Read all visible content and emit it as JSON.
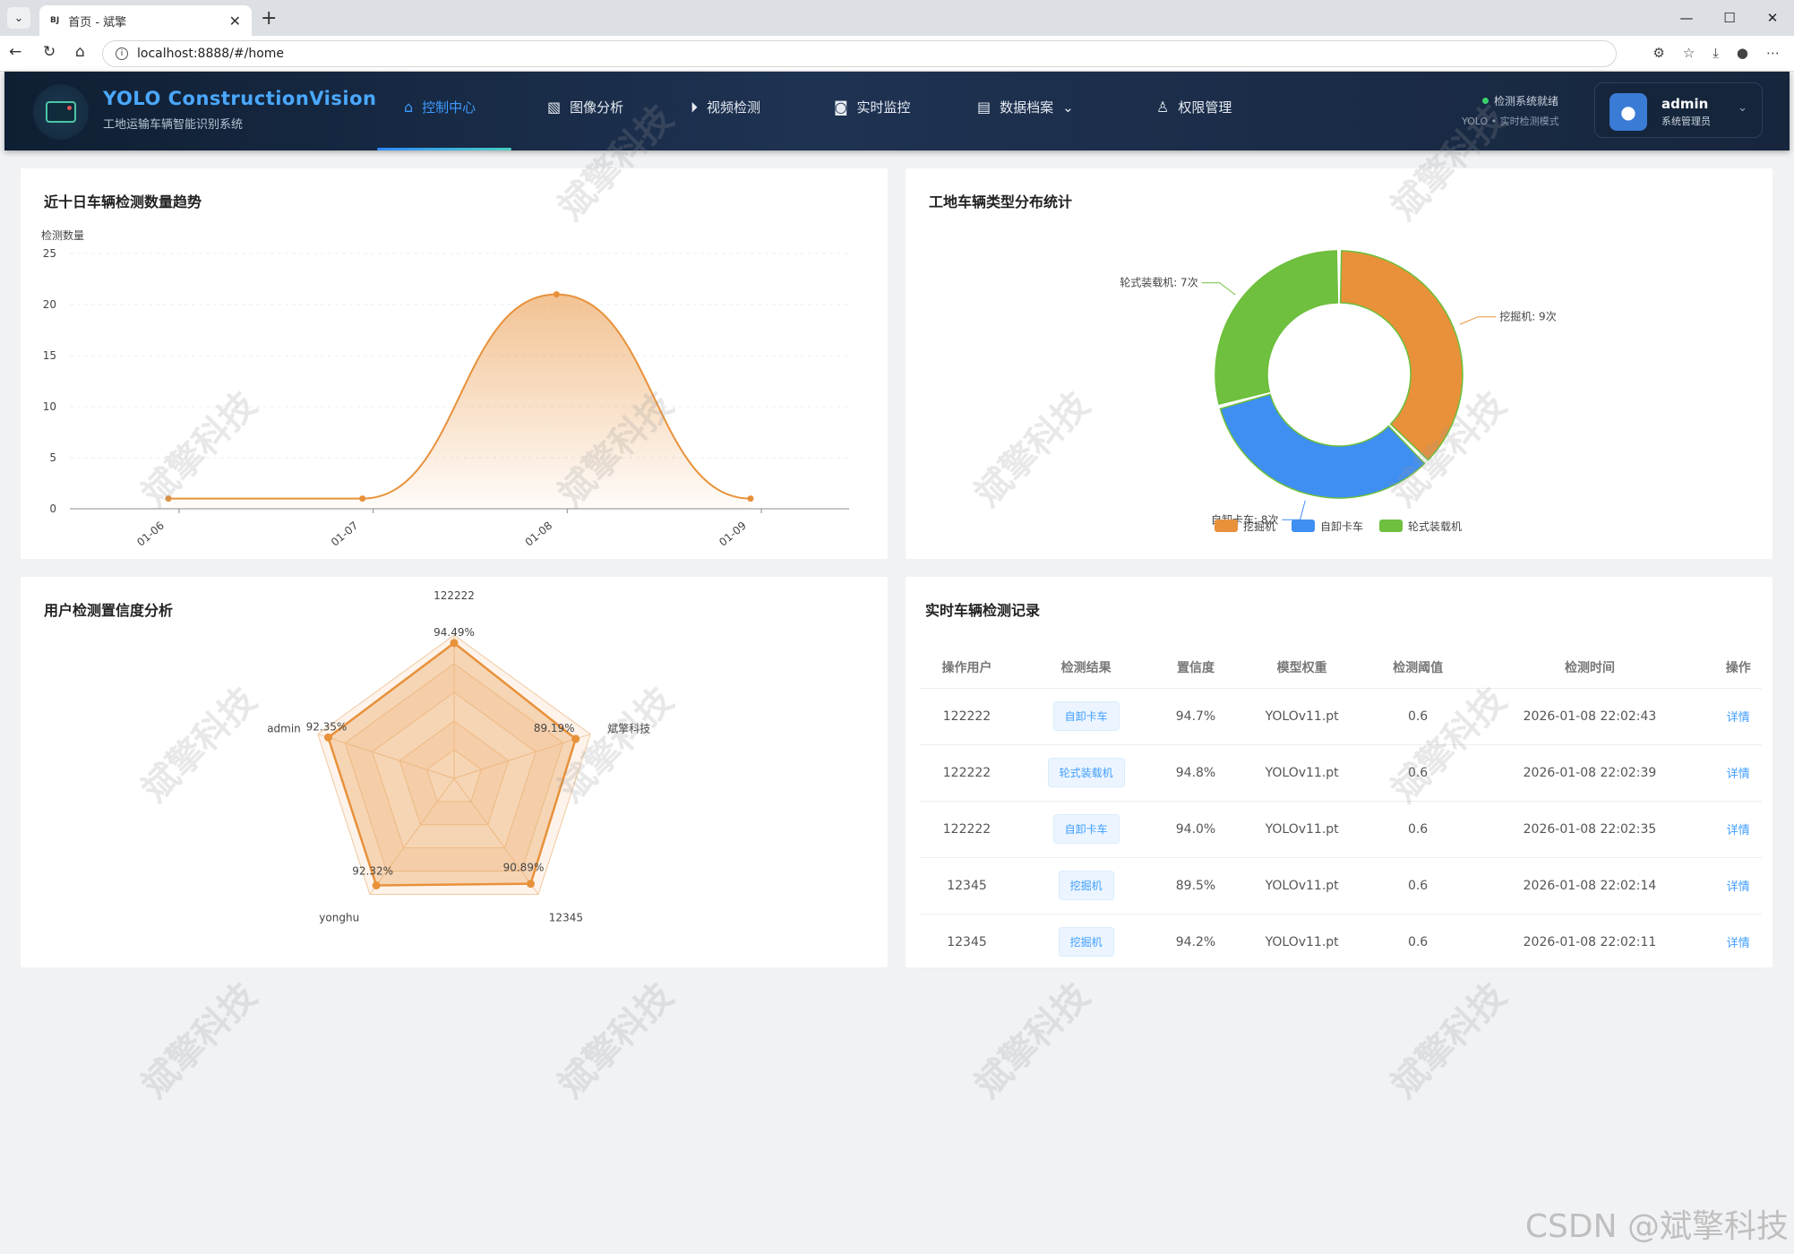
{
  "browser": {
    "tab_title": "首页 - 斌擎",
    "favicon_text": "BJ",
    "url": "localhost:8888/#/home"
  },
  "header": {
    "brand_title": "YOLO ConstructionVision",
    "brand_subtitle": "工地运输车辆智能识别系统",
    "nav": [
      {
        "label": "控制中心",
        "icon": "home-icon",
        "active": true
      },
      {
        "label": "图像分析",
        "icon": "image-icon",
        "active": false
      },
      {
        "label": "视频检测",
        "icon": "play-circle-icon",
        "active": false
      },
      {
        "label": "实时监控",
        "icon": "camera-icon",
        "active": false
      },
      {
        "label": "数据档案",
        "icon": "document-icon",
        "active": false
      },
      {
        "label": "权限管理",
        "icon": "user-icon",
        "active": false
      }
    ],
    "status": "检测系统就绪",
    "status_sub": "YOLO • 实时检测模式",
    "user_name": "admin",
    "user_role": "系统管理员"
  },
  "trend_card": {
    "title": "近十日车辆检测数量趋势"
  },
  "type_card": {
    "title": "工地车辆类型分布统计"
  },
  "radar_card": {
    "title": "用户检测置信度分析"
  },
  "records_card": {
    "title": "实时车辆检测记录",
    "columns": [
      "操作用户",
      "检测结果",
      "置信度",
      "模型权重",
      "检测阈值",
      "检测时间",
      "操作"
    ],
    "rows": [
      {
        "user": "122222",
        "result": "自卸卡车",
        "confidence": "94.7%",
        "model": "YOLOv11.pt",
        "threshold": "0.6",
        "time": "2026-01-08 22:02:43",
        "action": "详情"
      },
      {
        "user": "122222",
        "result": "轮式装载机",
        "confidence": "94.8%",
        "model": "YOLOv11.pt",
        "threshold": "0.6",
        "time": "2026-01-08 22:02:39",
        "action": "详情"
      },
      {
        "user": "122222",
        "result": "自卸卡车",
        "confidence": "94.0%",
        "model": "YOLOv11.pt",
        "threshold": "0.6",
        "time": "2026-01-08 22:02:35",
        "action": "详情"
      },
      {
        "user": "12345",
        "result": "挖掘机",
        "confidence": "89.5%",
        "model": "YOLOv11.pt",
        "threshold": "0.6",
        "time": "2026-01-08 22:02:14",
        "action": "详情"
      },
      {
        "user": "12345",
        "result": "挖掘机",
        "confidence": "94.2%",
        "model": "YOLOv11.pt",
        "threshold": "0.6",
        "time": "2026-01-08 22:02:11",
        "action": "详情"
      }
    ]
  },
  "watermark": "斌擎科技",
  "footer_watermark": "CSDN @斌擎科技",
  "colors": {
    "accent": "#409eff",
    "orange": "#e8913a",
    "blue": "#3f8ef2",
    "green": "#70c040"
  },
  "chart_data": [
    {
      "type": "area",
      "title": "近十日车辆检测数量趋势",
      "ylabel": "检测数量",
      "x": [
        "01-06",
        "01-07",
        "01-08",
        "01-09"
      ],
      "values": [
        1,
        1,
        21,
        1
      ],
      "ylim": [
        0,
        25
      ],
      "yticks": [
        0,
        5,
        10,
        15,
        20,
        25
      ],
      "grid": true
    },
    {
      "type": "pie",
      "title": "工地车辆类型分布统计",
      "donut": true,
      "slices": [
        {
          "name": "挖掘机",
          "value": 9,
          "label": "挖掘机: 9次",
          "color": "#e8913a"
        },
        {
          "name": "自卸卡车",
          "value": 8,
          "label": "自卸卡车: 8次",
          "color": "#3f8ef2"
        },
        {
          "name": "轮式装载机",
          "value": 7,
          "label": "轮式装载机: 7次",
          "color": "#70c040"
        }
      ],
      "legend": "bottom"
    },
    {
      "type": "radar",
      "title": "用户检测置信度分析",
      "indicators": [
        "122222",
        "斌擎科技",
        "12345",
        "yonghu",
        "admin"
      ],
      "values": [
        94.49,
        89.19,
        90.89,
        92.32,
        92.35
      ],
      "value_labels": [
        "94.49%",
        "89.19%",
        "90.89%",
        "92.32%",
        "92.35%"
      ],
      "max": 100
    }
  ]
}
